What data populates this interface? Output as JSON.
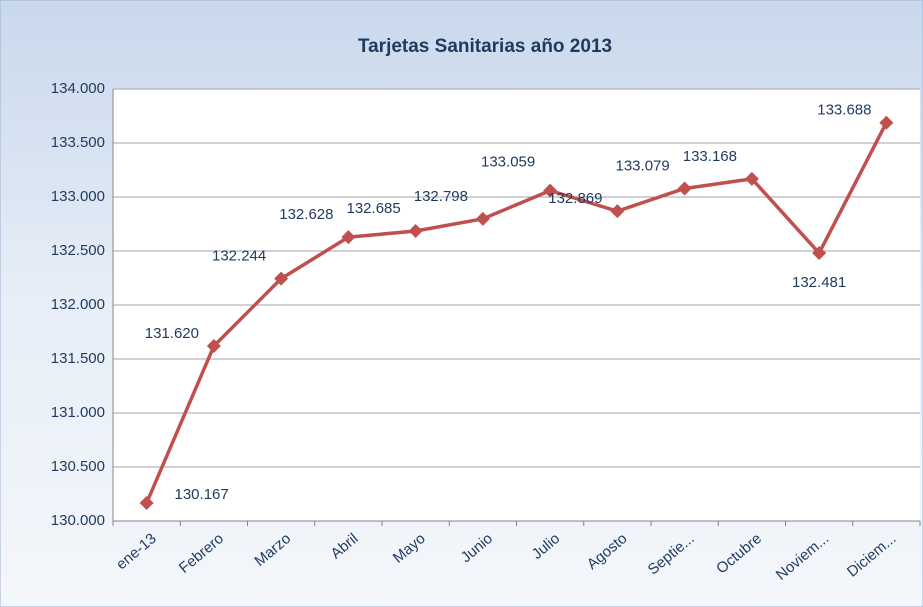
{
  "chart_data": {
    "type": "line",
    "title": "Tarjetas Sanitarias año 2013",
    "categories": [
      "ene-13",
      "Febrero",
      "Marzo",
      "Abril",
      "Mayo",
      "Junio",
      "Julio",
      "Agosto",
      "Septie...",
      "Octubre",
      "Noviem...",
      "Diciem..."
    ],
    "values": [
      130167,
      131620,
      132244,
      132628,
      132685,
      132798,
      133059,
      132869,
      133079,
      133168,
      132481,
      133688
    ],
    "value_labels": [
      "130.167",
      "131.620",
      "132.244",
      "132.628",
      "132.685",
      "132.798",
      "133.059",
      "132.869",
      "133.079",
      "133.168",
      "132.481",
      "133.688"
    ],
    "color": "#c0504d",
    "ylim": [
      130000,
      134000
    ],
    "yticks": [
      {
        "value": 130000,
        "label": "130.000"
      },
      {
        "value": 130500,
        "label": "130.500"
      },
      {
        "value": 131000,
        "label": "131.000"
      },
      {
        "value": 131500,
        "label": "131.500"
      },
      {
        "value": 132000,
        "label": "132.000"
      },
      {
        "value": 132500,
        "label": "132.500"
      },
      {
        "value": 133000,
        "label": "133.000"
      },
      {
        "value": 133500,
        "label": "133.500"
      },
      {
        "value": 134000,
        "label": "134.000"
      }
    ],
    "grid": true
  }
}
